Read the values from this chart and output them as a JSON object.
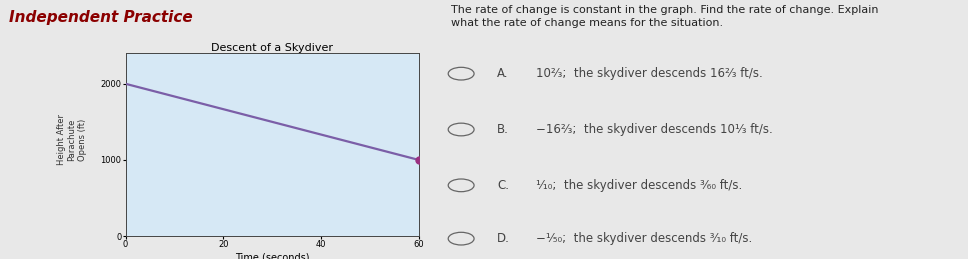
{
  "title": "Independent Practice",
  "title_color": "#8B0000",
  "title_fontsize": 11,
  "graph_title": "Descent of a Skydiver",
  "graph_title_fontsize": 8,
  "ylabel_lines": [
    "Height After",
    "Parachute Opens",
    "(ft)"
  ],
  "xlabel": "Time (seconds)",
  "xlabel_fontsize": 7,
  "ylabel_fontsize": 6.5,
  "yticks": [
    0,
    1000,
    2000
  ],
  "xticks": [
    0,
    20,
    40,
    60
  ],
  "xlim": [
    0,
    60
  ],
  "ylim": [
    0,
    2400
  ],
  "line_x": [
    0,
    60
  ],
  "line_y": [
    2000,
    1000
  ],
  "line_color": "#7B5EA7",
  "line_width": 1.6,
  "dot_x": 60,
  "dot_y": 1000,
  "dot_color": "#9B3080",
  "dot_size": 25,
  "bg_color": "#d6e8f5",
  "fig_bg_color": "#e8e8e8",
  "question_text": "The rate of change is constant in the graph. Find the rate of change. Explain\nwhat the rate of change means for the situation.",
  "question_fontsize": 8,
  "option_fontsize": 8.5,
  "option_color": "#444444",
  "radio_color": "#666666"
}
